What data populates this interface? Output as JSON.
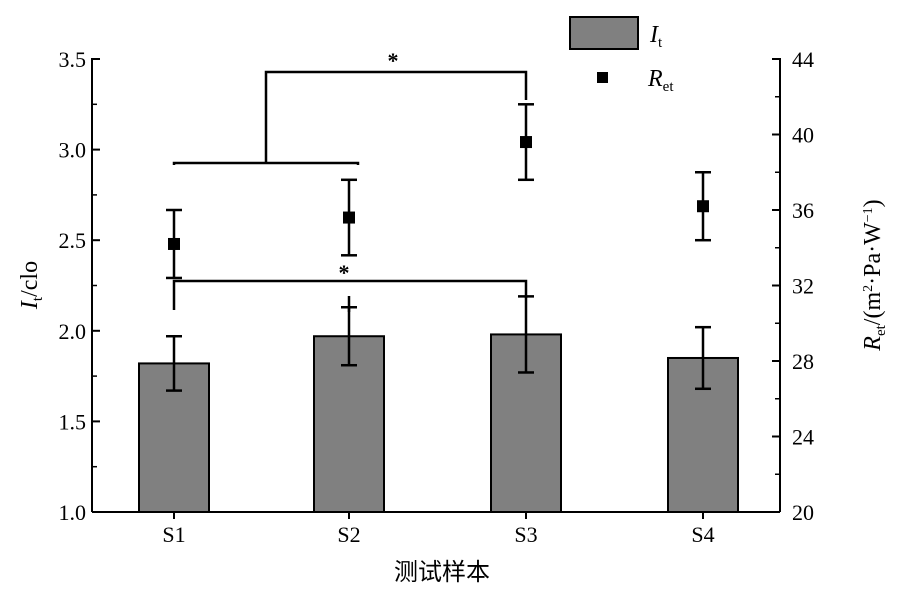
{
  "chart_data": {
    "type": "bar",
    "categories": [
      "S1",
      "S2",
      "S3",
      "S4"
    ],
    "xlabel": "测试样本",
    "y_left": {
      "label_main": "I",
      "label_sub": "t",
      "label_rest": "/clo",
      "ylim": [
        1.0,
        3.5
      ],
      "ticks": [
        "1.0",
        "1.5",
        "2.0",
        "2.5",
        "3.0",
        "3.5"
      ]
    },
    "y_right": {
      "label_main": "R",
      "label_sub": "et",
      "label_rest_a": "/(m",
      "label_sup_a": "2",
      "label_rest_b": "·Pa·W",
      "label_sup_b": "−1",
      "label_rest_c": ")",
      "ylim": [
        20,
        44
      ],
      "ticks": [
        "20",
        "24",
        "28",
        "32",
        "36",
        "40",
        "44"
      ]
    },
    "series": [
      {
        "name_main": "I",
        "name_sub": "t",
        "kind": "bar",
        "axis": "left",
        "color": "#808080",
        "values": [
          1.82,
          1.97,
          1.98,
          1.85
        ],
        "errors": [
          0.15,
          0.16,
          0.21,
          0.17
        ]
      },
      {
        "name_main": "R",
        "name_sub": "et",
        "kind": "scatter",
        "axis": "right",
        "marker": "square",
        "color": "#000000",
        "values": [
          34.2,
          35.6,
          39.6,
          36.2
        ],
        "errors": [
          1.8,
          2.0,
          2.0,
          1.8
        ]
      }
    ],
    "significance": [
      {
        "label": "*",
        "between": [
          "S1",
          "S3"
        ]
      },
      {
        "label": "*",
        "between": [
          "S1",
          "S2"
        ]
      }
    ],
    "legend_position": "top-right",
    "grid": false
  }
}
